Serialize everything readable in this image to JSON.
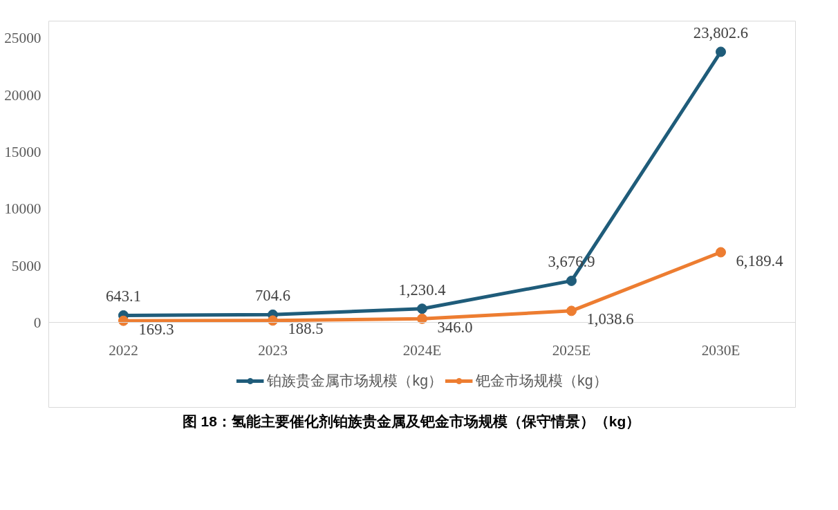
{
  "chart_data": {
    "type": "line",
    "title": "图 18：氢能主要催化剂铂族贵金属及钯金市场规模（保守情景）（kg）",
    "categories": [
      "2022",
      "2023",
      "2024E",
      "2025E",
      "2030E"
    ],
    "series": [
      {
        "name": "铂族贵金属市场规模（kg）",
        "color": "#1f5c7a",
        "values": [
          643.1,
          704.6,
          1230.4,
          3676.9,
          23802.6
        ],
        "value_labels": [
          "643.1",
          "704.6",
          "1,230.4",
          "3,676.9",
          "23,802.6"
        ]
      },
      {
        "name": "钯金市场规模（kg）",
        "color": "#ed7d31",
        "values": [
          169.3,
          188.5,
          346.0,
          1038.6,
          6189.4
        ],
        "value_labels": [
          "169.3",
          "188.5",
          "346.0",
          "1,038.6",
          "6,189.4"
        ]
      }
    ],
    "ylim": [
      -7500,
      26500
    ],
    "yticks": [
      0,
      5000,
      10000,
      15000,
      20000,
      25000
    ],
    "grid": false,
    "legend": "bottom",
    "marker": "circle",
    "line_style": "solid"
  }
}
